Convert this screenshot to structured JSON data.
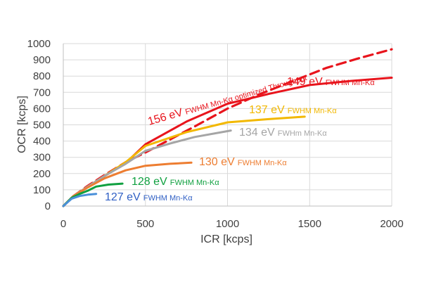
{
  "chart_data": {
    "type": "line",
    "xlabel": "ICR [kcps]",
    "ylabel": "OCR [kcps]",
    "xlim": [
      0,
      2000
    ],
    "ylim": [
      0,
      1000
    ],
    "x_ticks": [
      "0",
      "500",
      "1000",
      "1500",
      "2000"
    ],
    "y_ticks": [
      "0",
      "100",
      "200",
      "300",
      "400",
      "500",
      "600",
      "700",
      "800",
      "900",
      "1000"
    ],
    "grid": true,
    "series": [
      {
        "name": "156 eV FWHM Mn-Kα optimized Throughput",
        "value_text": "156 eV",
        "unit_text": "FWHM Mn-Kα optimized Throughput",
        "color": "#e8141c",
        "dashed": true,
        "x": [
          0,
          60,
          150,
          250,
          380,
          500,
          650,
          800,
          1000,
          1200,
          1400,
          1600,
          1800,
          2000
        ],
        "y": [
          0,
          60,
          125,
          190,
          270,
          330,
          410,
          490,
          600,
          690,
          770,
          850,
          910,
          965
        ]
      },
      {
        "name": "149 eV FWHM Mn-Kα",
        "value_text": "149 eV",
        "unit_text": "FWHM Mn-Kα",
        "color": "#e8141c",
        "dashed": false,
        "x": [
          0,
          60,
          150,
          250,
          380,
          500,
          750,
          1000,
          1250,
          1500,
          1750,
          2000
        ],
        "y": [
          0,
          60,
          120,
          185,
          265,
          380,
          520,
          630,
          690,
          745,
          770,
          790
        ]
      },
      {
        "name": "137 eV FWHM Mn-Kα",
        "value_text": "137 eV",
        "unit_text": "FWHM Mn-Kα",
        "color": "#f2b800",
        "dashed": false,
        "x": [
          0,
          60,
          150,
          250,
          380,
          500,
          750,
          1000,
          1250,
          1470
        ],
        "y": [
          0,
          60,
          120,
          185,
          270,
          370,
          455,
          515,
          535,
          550
        ]
      },
      {
        "name": "134 eV FWHm Mn-Kα",
        "value_text": "134  eV",
        "unit_text": "FWHm Mn-Kα",
        "color": "#a5a5a5",
        "dashed": false,
        "x": [
          0,
          60,
          150,
          250,
          380,
          500,
          650,
          800,
          1020
        ],
        "y": [
          0,
          60,
          120,
          185,
          260,
          340,
          385,
          425,
          465
        ]
      },
      {
        "name": "130 eV FWHM Mn-Kα",
        "value_text": "130 eV",
        "unit_text": "FWHM Mn-Kα",
        "color": "#ed7d31",
        "dashed": false,
        "x": [
          0,
          60,
          150,
          250,
          380,
          500,
          650,
          780
        ],
        "y": [
          0,
          60,
          115,
          170,
          220,
          248,
          260,
          267
        ]
      },
      {
        "name": "128 eV FWHM Mn-Kα",
        "value_text": "128 eV",
        "unit_text": "FWHM Mn-Kα",
        "color": "#10a040",
        "dashed": false,
        "x": [
          0,
          50,
          100,
          150,
          200,
          275,
          360
        ],
        "y": [
          0,
          50,
          75,
          95,
          120,
          132,
          138
        ]
      },
      {
        "name": "127 eV FWHM Mn-Kα",
        "value_text": "127 eV",
        "unit_text": "FWHM Mn-Kα",
        "color": "#4a90d9",
        "dashed": false,
        "x": [
          0,
          50,
          100,
          150,
          200
        ],
        "y": [
          0,
          45,
          62,
          70,
          75
        ]
      }
    ],
    "annotations": [
      {
        "value_text": "156 eV",
        "unit_text": "FWHM Mn-Kα optimized Throughput",
        "color": "#e8141c",
        "series": 0
      },
      {
        "value_text": "149 eV",
        "unit_text": "FWHM Mn-Kα",
        "color": "#e8141c",
        "series": 1
      },
      {
        "value_text": "137 eV",
        "unit_text": "FWHM Mn-Kα",
        "color": "#f2b800",
        "series": 2
      },
      {
        "value_text": "134  eV",
        "unit_text": "FWHm Mn-Kα",
        "color": "#a5a5a5",
        "series": 3
      },
      {
        "value_text": "130 eV",
        "unit_text": "FWHM Mn-Kα",
        "color": "#ed7d31",
        "series": 4
      },
      {
        "value_text": "128 eV",
        "unit_text": "FWHM Mn-Kα",
        "color": "#10a040",
        "series": 5
      },
      {
        "value_text": "127 eV",
        "unit_text": "FWHM Mn-Kα",
        "color": "#2f5fc4",
        "series": 6
      }
    ]
  }
}
